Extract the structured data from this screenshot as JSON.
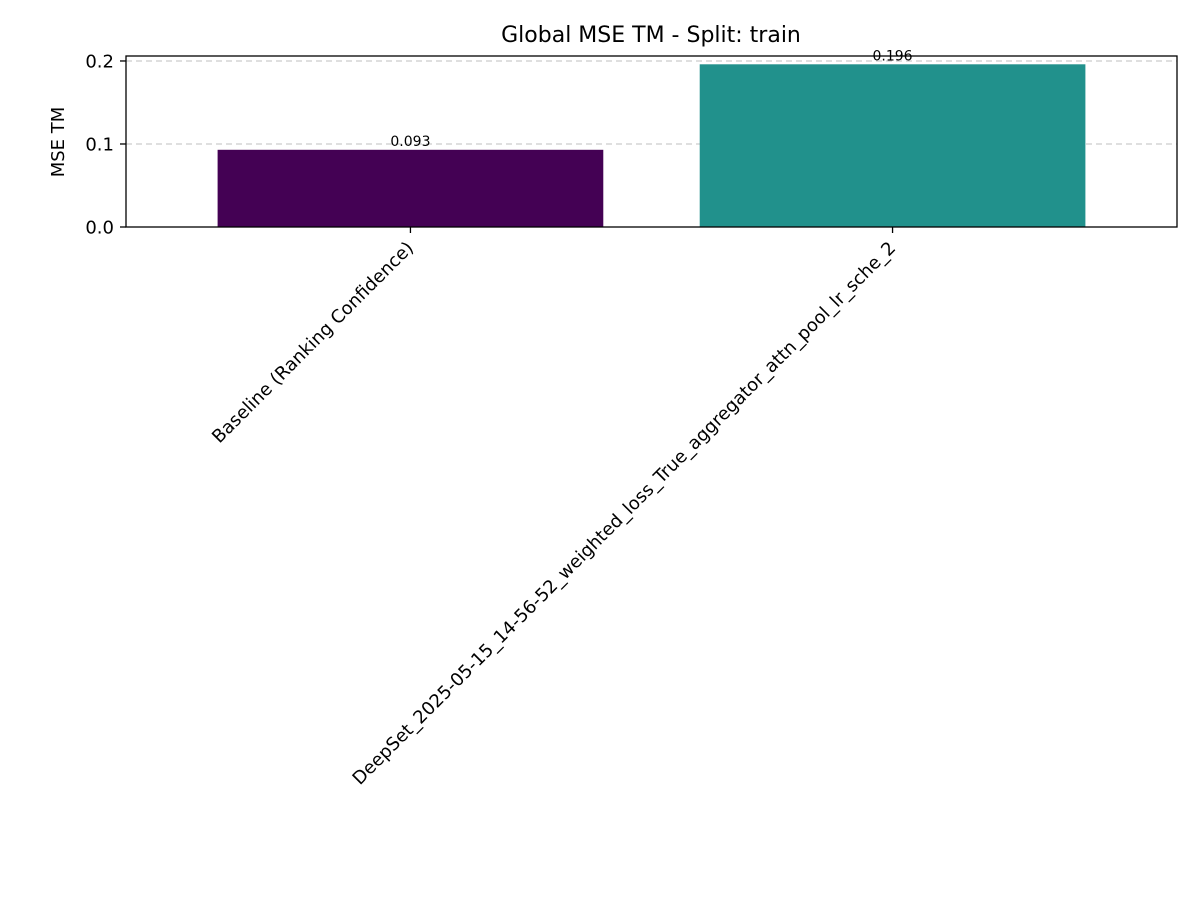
{
  "chart_data": {
    "type": "bar",
    "title": "Global MSE TM - Split: train",
    "xlabel": "",
    "ylabel": "MSE TM",
    "categories": [
      "Baseline (Ranking Confidence)",
      "DeepSet_2025-05-15_14-56-52_weighted_loss_True_aggregator_attn_pool_lr_sche_2"
    ],
    "values": [
      0.093,
      0.196
    ],
    "data_labels": [
      "0.093",
      "0.196"
    ],
    "colors": [
      "#440154",
      "#21918c"
    ],
    "ylim": [
      0,
      0.206
    ],
    "yticks": [
      0.0,
      0.1,
      0.2
    ],
    "ytick_labels": [
      "0.0",
      "0.1",
      "0.2"
    ],
    "grid": "y-dashed",
    "legend": "none"
  }
}
